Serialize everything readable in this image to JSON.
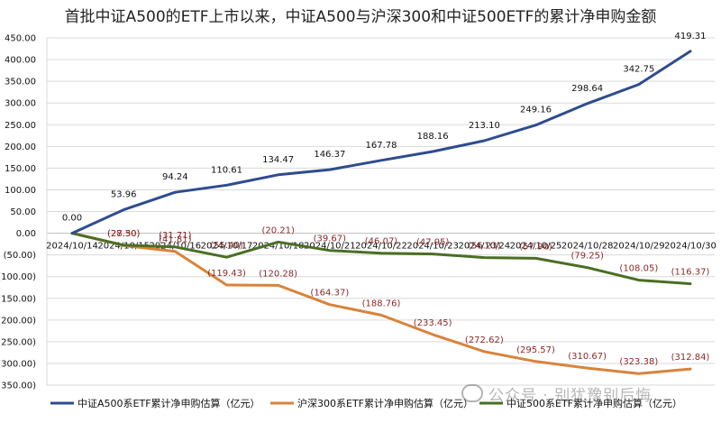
{
  "chart_data": {
    "type": "line",
    "title": "首批中证A500的ETF上市以来，中证A500与沪深300和中证500ETF的累计净申购金额",
    "xlabel": "",
    "ylabel": "",
    "ylim": [
      -350,
      450
    ],
    "y_ticks": [
      "450.00",
      "400.00",
      "350.00",
      "300.00",
      "250.00",
      "200.00",
      "150.00",
      "100.00",
      "50.00",
      "0.00",
      "(50.00)",
      "(100.00)",
      "(150.00)",
      "(200.00)",
      "(250.00)",
      "(300.00)",
      "(350.00)"
    ],
    "categories": [
      "2024/10/14",
      "2024/10/15",
      "2024/10/16",
      "2024/10/17",
      "2024/10/18",
      "2024/10/21",
      "2024/10/22",
      "2024/10/23",
      "2024/10/24",
      "2024/10/25",
      "2024/10/28",
      "2024/10/29",
      "2024/10/30"
    ],
    "grid": true,
    "legend_position": "bottom",
    "series": [
      {
        "name": "中证A500系ETF累计净申购估算（亿元）",
        "color": "#2e4c8f",
        "values": [
          0,
          53.96,
          94.24,
          110.61,
          134.47,
          146.37,
          167.78,
          188.16,
          213.1,
          249.16,
          298.64,
          342.75,
          419.31
        ],
        "labels": [
          "0.00",
          "53.96",
          "94.24",
          "110.61",
          "134.47",
          "146.37",
          "167.78",
          "188.16",
          "213.10",
          "249.16",
          "298.64",
          "342.75",
          "419.31"
        ]
      },
      {
        "name": "沪深300系ETF累计净申购估算（亿元）",
        "color": "#d8833b",
        "values": [
          0,
          -28.3,
          -41.81,
          -119.43,
          -120.28,
          -164.37,
          -188.76,
          -233.45,
          -272.62,
          -295.57,
          -310.67,
          -323.38,
          -312.84
        ],
        "labels": [
          "",
          "(28.30)",
          "(41.81)",
          "(119.43)",
          "(120.28)",
          "(164.37)",
          "(188.76)",
          "(233.45)",
          "(272.62)",
          "(295.57)",
          "(310.67)",
          "(323.38)",
          "(312.84)"
        ]
      },
      {
        "name": "中证500系ETF累计净申购估算（亿元）",
        "color": "#4a6e23",
        "values": [
          0,
          -27.5,
          -31.71,
          -55.4,
          -20.21,
          -39.67,
          -46.07,
          -47.95,
          -56.23,
          -57.9,
          -79.25,
          -108.05,
          -116.37
        ],
        "labels": [
          "",
          "(27.50)",
          "(31.71)",
          "(55.40)",
          "(20.21)",
          "(39.67)",
          "(46.07)",
          "(47.95)",
          "(56.23)",
          "(57.90)",
          "(79.25)",
          "(108.05)",
          "(116.37)"
        ]
      }
    ]
  },
  "watermark": {
    "text": "公众号 · 别犹豫别后悔"
  }
}
